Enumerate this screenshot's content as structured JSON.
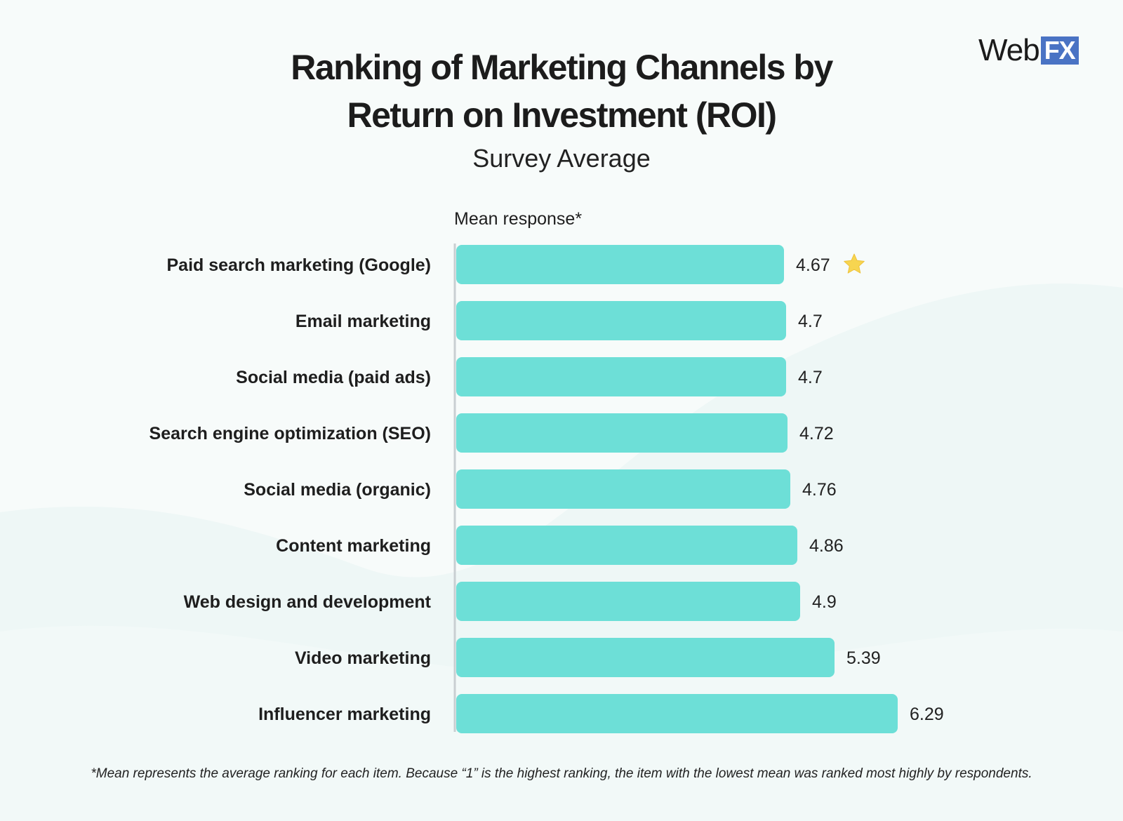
{
  "header": {
    "title_line1": "Ranking of Marketing Channels by",
    "title_line2": "Return on Investment (ROI)",
    "subtitle": "Survey Average"
  },
  "logo": {
    "text_web": "Web",
    "text_fx": "FX"
  },
  "footnote": "*Mean represents the average ranking for each item. Because “1” is the highest ranking, the item with the lowest mean was ranked most highly by respondents.",
  "colors": {
    "bar": "#6ddfd7",
    "axis": "#c9cfd2",
    "star": "#f7d550",
    "logo_fx": "#4a73c4",
    "background": "#f7fbfa"
  },
  "chart_data": {
    "type": "bar",
    "orientation": "horizontal",
    "value_axis_label": "Mean response*",
    "categories": [
      "Paid search marketing (Google)",
      "Email marketing",
      "Social media (paid ads)",
      "Search engine optimization (SEO)",
      "Social media (organic)",
      "Content marketing",
      "Web design and development",
      "Video marketing",
      "Influencer marketing"
    ],
    "values": [
      4.67,
      4.7,
      4.7,
      4.72,
      4.76,
      4.86,
      4.9,
      5.39,
      6.29
    ],
    "value_labels": [
      "4.67",
      "4.7",
      "4.7",
      "4.72",
      "4.76",
      "4.86",
      "4.9",
      "5.39",
      "6.29"
    ],
    "highlight": {
      "category": "Paid search marketing (Google)",
      "icon": "star-icon"
    },
    "xlim": [
      0,
      6.3
    ],
    "grid": false,
    "legend": "none"
  }
}
